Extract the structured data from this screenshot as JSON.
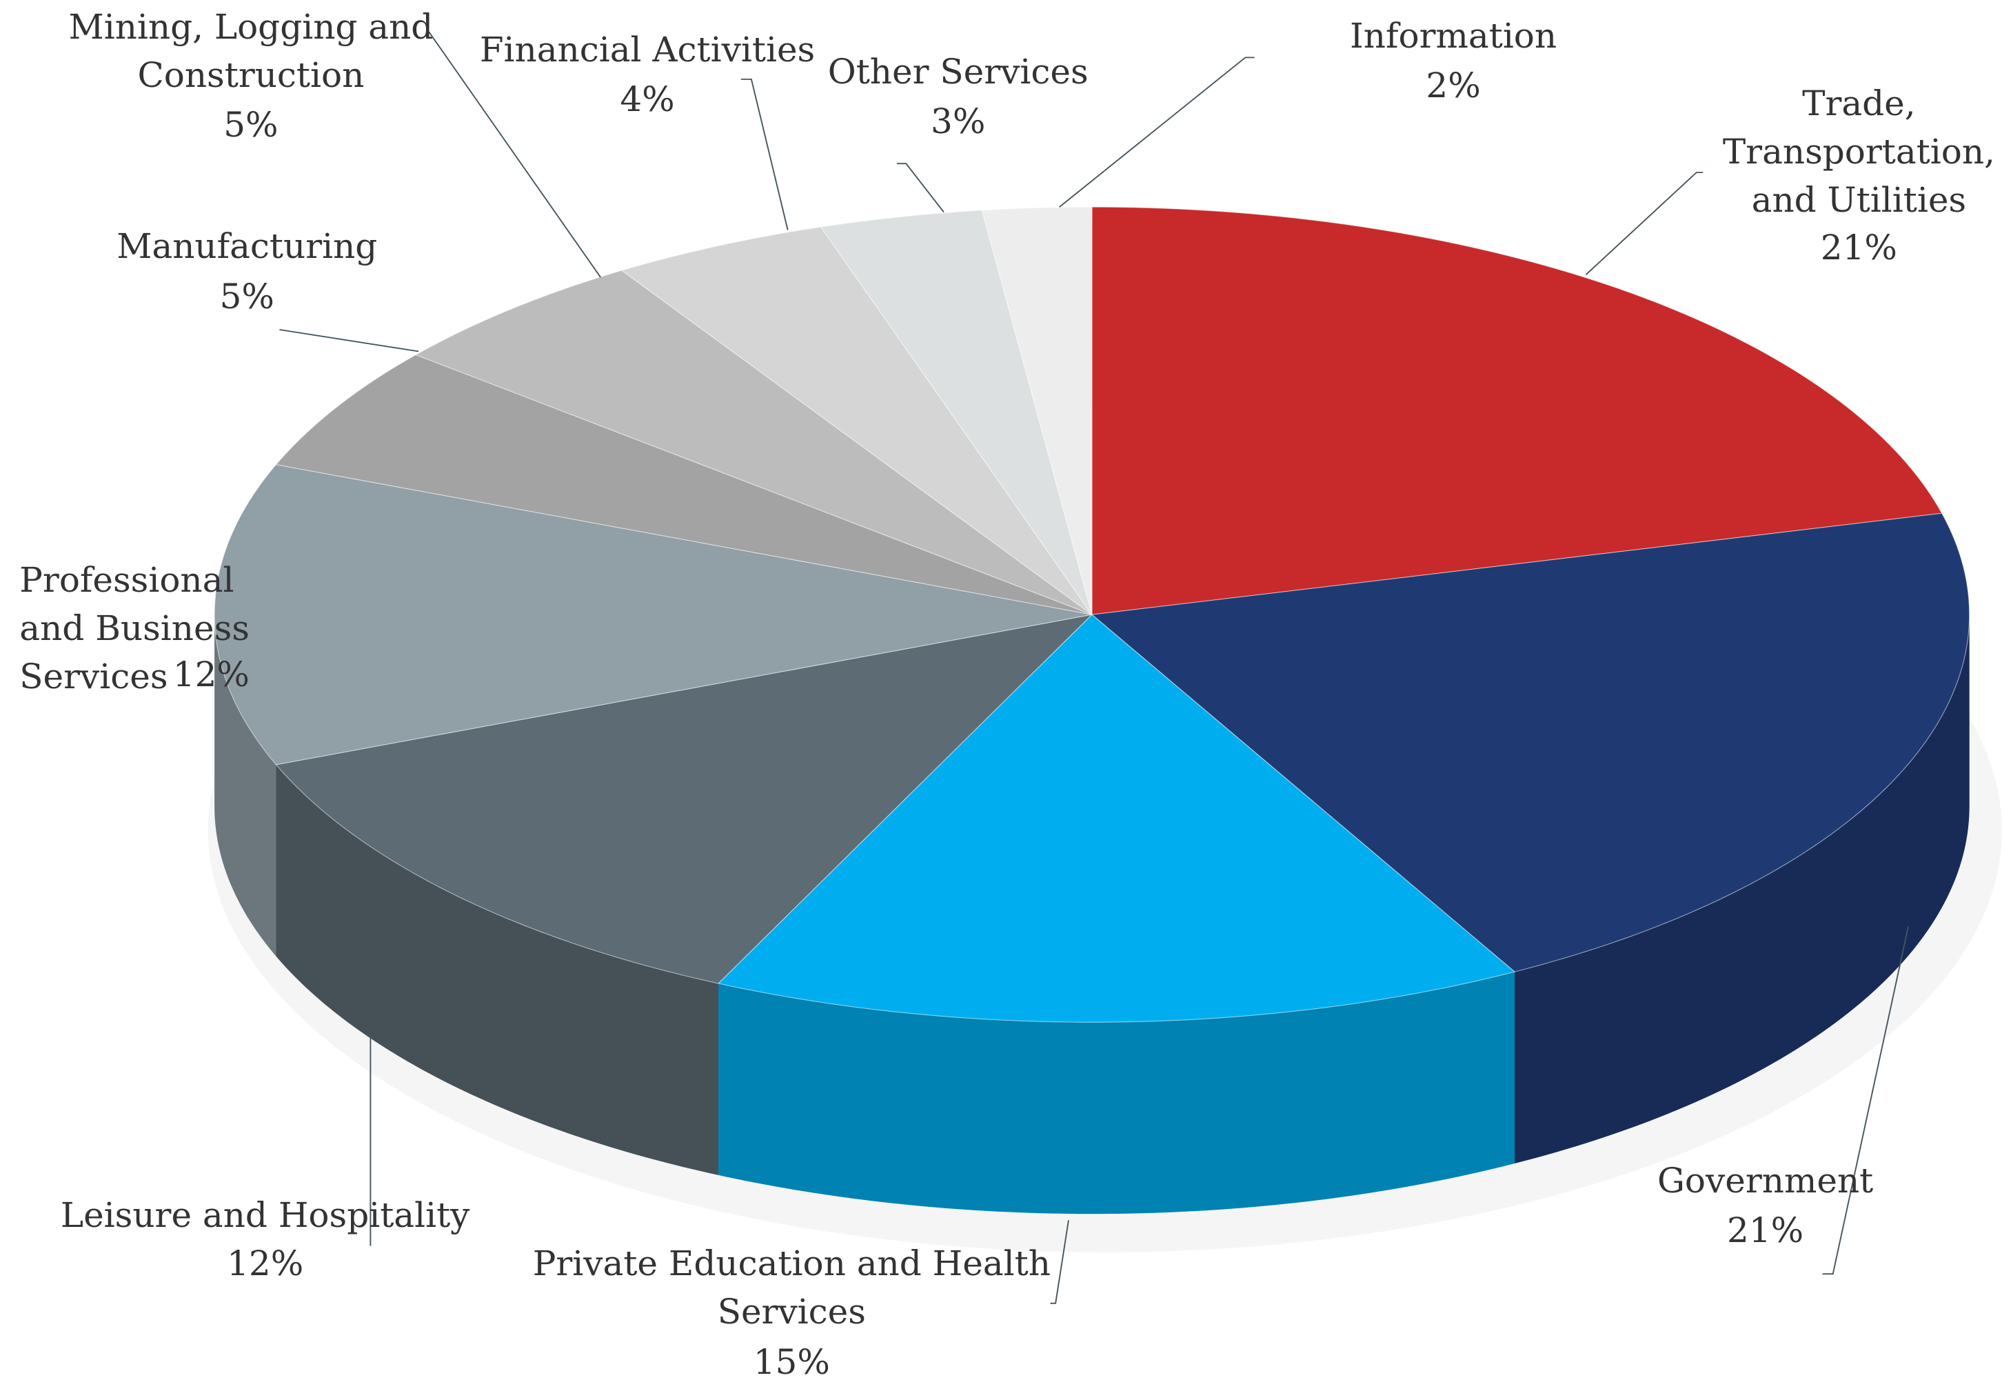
{
  "chart_data": {
    "type": "pie",
    "categories": [
      "Trade,\nTransportation,\nand Utilities",
      "Government",
      "Private Education and Health\nServices",
      "Leisure and Hospitality",
      "Professional\nand Business\nServices",
      "Manufacturing",
      "Mining, Logging and\nConstruction",
      "Financial Activities",
      "Other Services",
      "Information"
    ],
    "values": [
      21,
      21,
      15,
      12,
      12,
      5,
      5,
      4,
      3,
      2
    ],
    "value_labels": [
      "21%",
      "21%",
      "15%",
      "12%",
      "12%",
      "5%",
      "5%",
      "4%",
      "3%",
      "2%"
    ],
    "colors": [
      "#c8292b",
      "#1f3a73",
      "#00aeef",
      "#5c6b74",
      "#919fa7",
      "#a3a3a3",
      "#bcbcbc",
      "#d5d5d5",
      "#dde0e1",
      "#ededed"
    ]
  }
}
